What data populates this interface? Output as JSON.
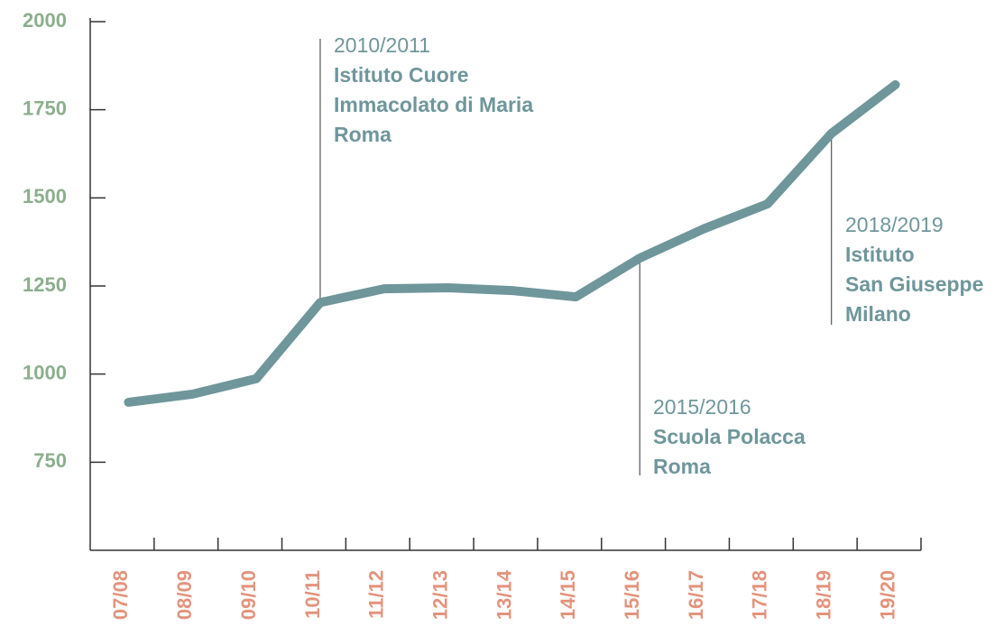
{
  "chart_data": {
    "type": "line",
    "categories": [
      "07/08",
      "08/09",
      "09/10",
      "10/11",
      "11/12",
      "12/13",
      "13/14",
      "14/15",
      "15/16",
      "16/17",
      "17/18",
      "18/19",
      "19/20"
    ],
    "values": [
      920,
      943,
      987,
      1203,
      1242,
      1245,
      1237,
      1219,
      1329,
      1412,
      1483,
      1683,
      1821
    ],
    "color": "#6f969b",
    "ylim": [
      500,
      2000
    ],
    "yticks": [
      750,
      1000,
      1250,
      1500,
      1750,
      2000
    ],
    "grid": false,
    "annotations": [
      {
        "label": "2010/2011",
        "text": [
          "Istituto Cuore",
          "Immacolato di Maria",
          "Roma"
        ]
      },
      {
        "label": "2015/2016",
        "text": [
          "Scuola Polacca",
          "Roma"
        ]
      },
      {
        "label": "2018/2019",
        "text": [
          "Istituto",
          "San Giuseppe",
          "Milano"
        ]
      }
    ]
  }
}
